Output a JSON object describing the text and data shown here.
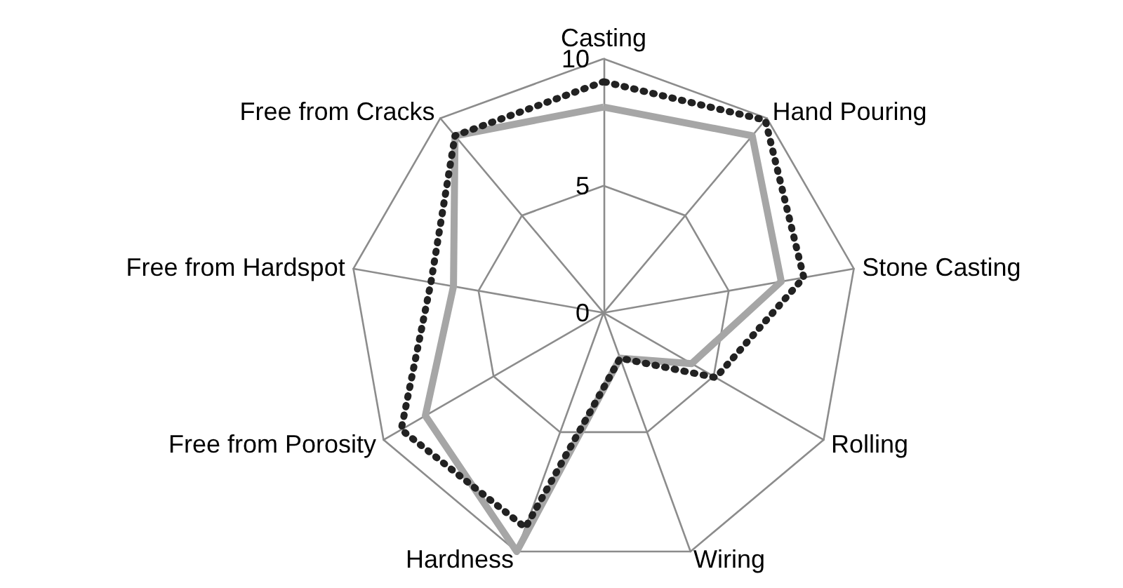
{
  "chart_data": {
    "type": "radar",
    "categories": [
      "Casting",
      "Hand Pouring",
      "Stone Casting",
      "Rolling",
      "Wiring",
      "Hardness",
      "Free from Porosity",
      "Free from Hardspot",
      "Free from Cracks"
    ],
    "series": [
      {
        "color": "#a6a6a6",
        "line_style": "solid",
        "values": [
          8.1,
          9.1,
          7.1,
          4.0,
          1.9,
          10,
          8.1,
          6.0,
          9.1
        ]
      },
      {
        "color": "#222222",
        "line_style": "dotted",
        "values": [
          9.1,
          9.9,
          8.0,
          5.1,
          1.9,
          9.0,
          9.2,
          6.9,
          9.1
        ]
      }
    ],
    "ylim": [
      0,
      10
    ],
    "yticks": [
      0,
      5,
      10
    ],
    "grid": true,
    "marker": "none"
  }
}
